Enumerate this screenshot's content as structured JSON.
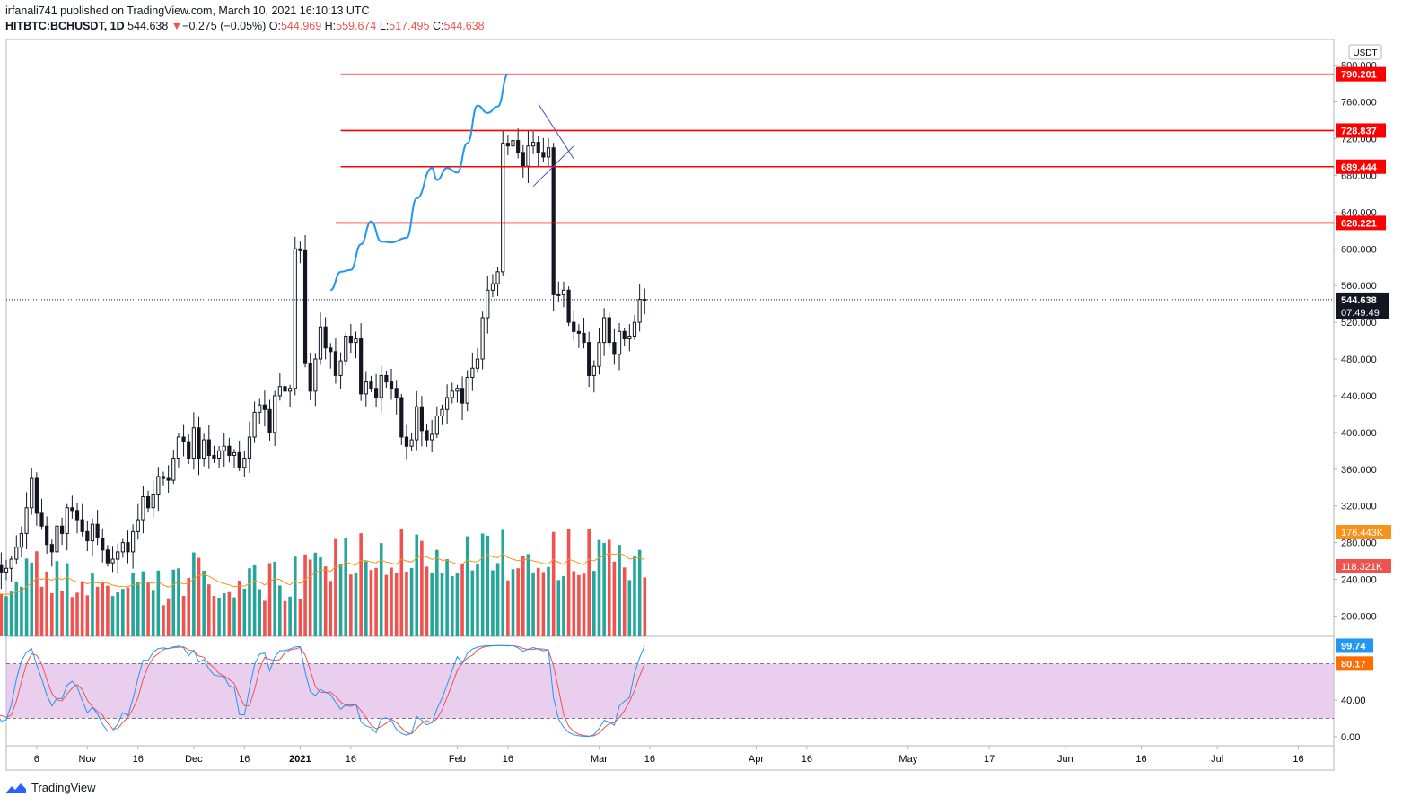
{
  "header": {
    "published": "irfanali741 published on TradingView.com, March 10, 2021 16:10:13 UTC",
    "symbol": "HITBTC:BCHUSDT, 1D",
    "last": "544.638",
    "change_arrow": "▼",
    "change": "−0.275 (−0.05%)",
    "o_label": "O:",
    "o_value": "544.969",
    "h_label": "H:",
    "h_value": "559.674",
    "l_label": "L:",
    "l_value": "517.495",
    "c_label": "C:",
    "c_value": "544.638"
  },
  "footer": {
    "brand": "TradingView",
    "logo_icon": "tradingview-logo-icon"
  },
  "colors": {
    "bull": "#26a69a",
    "bear": "#ef5350",
    "candle": "#131722",
    "level": "#ff0000",
    "projection": "#2196f3",
    "ma": "#f7931a",
    "stoch_k": "#2196f3",
    "stoch_d": "#ef5350",
    "stoch_band": "#e1bee7"
  },
  "chart_data": {
    "type": "candlestick",
    "currency_label": "USDT",
    "x_ticks": [
      "6",
      "Nov",
      "16",
      "Dec",
      "16",
      "2021",
      "16",
      "Feb",
      "16",
      "Mar",
      "16",
      "Apr",
      "16",
      "May",
      "17",
      "Jun",
      "16",
      "Jul",
      "16"
    ],
    "x_tick_days": [
      -52,
      -42,
      -32,
      -21,
      -11,
      0,
      10,
      31,
      41,
      59,
      69,
      90,
      100,
      120,
      136,
      151,
      166,
      181,
      197
    ],
    "x_range_days": [
      -58,
      204
    ],
    "price_ticks": [
      200,
      240,
      280,
      320,
      360,
      400,
      440,
      480,
      520,
      560,
      600,
      640,
      680,
      720,
      760,
      800
    ],
    "price_tick_labels": [
      "200.000",
      "240.000",
      "280.000",
      "320.000",
      "360.000",
      "400.000",
      "440.000",
      "480.000",
      "520.000",
      "560.000",
      "600.000",
      "640.000",
      "680.000",
      "720.000",
      "760.000",
      "800.000"
    ],
    "price_range": [
      178,
      828
    ],
    "levels": [
      {
        "price": 790.201,
        "label": "790.201",
        "start_day": 8
      },
      {
        "price": 728.837,
        "label": "728.837",
        "start_day": 8
      },
      {
        "price": 689.444,
        "label": "689.444",
        "start_day": 8
      },
      {
        "price": 628.221,
        "label": "628.221",
        "start_day": 7
      }
    ],
    "last_price": {
      "price": 544.638,
      "label": "544.638",
      "countdown": "07:49:49"
    },
    "volume_labels": [
      {
        "price": 176.443,
        "label": "176.443K",
        "color": "#f7931a"
      },
      {
        "price": 118.321,
        "label": "118.321K",
        "color": "#ef5350"
      }
    ],
    "candles_close": [
      255,
      250,
      262,
      252,
      248,
      245,
      256,
      262,
      270,
      265,
      260,
      258,
      262,
      255,
      250,
      245,
      262,
      270,
      258,
      262,
      275,
      280,
      270,
      262,
      258,
      255,
      260,
      250,
      245,
      258,
      255,
      248,
      252,
      262,
      275,
      290,
      318,
      350,
      312,
      298,
      278,
      270,
      298,
      290,
      318,
      315,
      305,
      292,
      282,
      300,
      285,
      272,
      258,
      262,
      270,
      280,
      270,
      292,
      305,
      330,
      318,
      332,
      352,
      350,
      348,
      372,
      395,
      390,
      372,
      405,
      372,
      392,
      375,
      372,
      380,
      385,
      375,
      378,
      362,
      372,
      395,
      422,
      430,
      425,
      400,
      440,
      450,
      445,
      448,
      600,
      598,
      475,
      445,
      480,
      515,
      492,
      488,
      462,
      478,
      505,
      498,
      502,
      442,
      455,
      448,
      438,
      462,
      455,
      448,
      438,
      395,
      385,
      392,
      428,
      402,
      392,
      398,
      418,
      425,
      438,
      445,
      448,
      432,
      460,
      470,
      480,
      525,
      555,
      562,
      575,
      715,
      712,
      718,
      705,
      690,
      712,
      716,
      705,
      700,
      710,
      550,
      550,
      555,
      520,
      510,
      508,
      498,
      462,
      472,
      498,
      525,
      498,
      485,
      510,
      502,
      505,
      520,
      545,
      544.638
    ],
    "projection": [
      [
        6,
        555
      ],
      [
        8,
        575
      ],
      [
        10,
        577
      ],
      [
        12,
        605
      ],
      [
        14,
        630
      ],
      [
        16,
        608
      ],
      [
        18,
        607
      ],
      [
        21,
        612
      ],
      [
        23,
        655
      ],
      [
        26,
        688
      ],
      [
        27,
        675
      ],
      [
        29,
        688
      ],
      [
        31,
        683
      ],
      [
        33,
        715
      ],
      [
        35,
        756
      ],
      [
        37,
        748
      ],
      [
        39,
        755
      ],
      [
        41,
        790
      ]
    ],
    "stoch_axis": [
      0,
      40,
      80
    ],
    "stoch_axis_labels": [
      "0.00",
      "40.00"
    ],
    "stoch_range": [
      -10,
      110
    ],
    "stoch_levels": [
      20,
      80
    ],
    "stoch_k_last": {
      "value": 99.74,
      "label": "99.74"
    },
    "stoch_d_last": {
      "value": 80.17,
      "label": "80.17"
    }
  }
}
